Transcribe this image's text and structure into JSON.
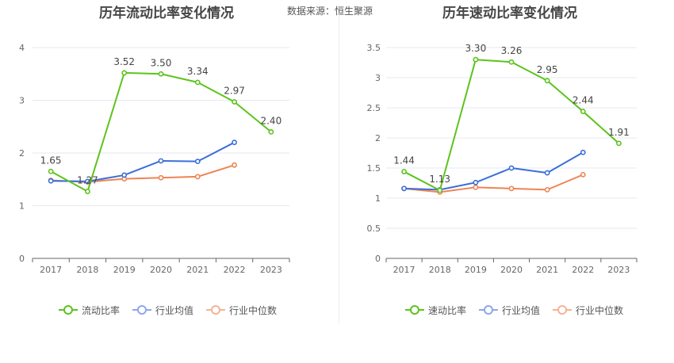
{
  "header": {
    "left_title": "历年流动比率变化情况",
    "right_title": "历年速动比率变化情况",
    "source_label": "数据来源：",
    "source_value": "恒生聚源"
  },
  "colors": {
    "company": "#5cc41c",
    "industry_avg": "#3b6fd8",
    "industry_median": "#ee8454",
    "legend_avg": "#8fa8e6",
    "legend_median": "#f3b496",
    "axis": "#666666",
    "grid": "#e6e9f0",
    "label": "#444444"
  },
  "chart_data": [
    {
      "type": "line",
      "title": "历年流动比率变化情况",
      "categories": [
        "2017",
        "2018",
        "2019",
        "2020",
        "2021",
        "2022",
        "2023"
      ],
      "ylim": [
        0,
        4
      ],
      "yticks": [
        0,
        1,
        2,
        3,
        4
      ],
      "ytick_labels": [
        "0",
        "1",
        "2",
        "3",
        "4"
      ],
      "series": [
        {
          "name": "流动比率",
          "values": [
            1.65,
            1.27,
            3.52,
            3.5,
            3.34,
            2.97,
            2.4
          ],
          "labels": [
            "1.65",
            "1.27",
            "3.52",
            "3.50",
            "3.34",
            "2.97",
            "2.40"
          ],
          "color_key": "company",
          "legend_color_key": "company"
        },
        {
          "name": "行业均值",
          "values": [
            1.47,
            1.46,
            1.58,
            1.85,
            1.84,
            2.2,
            null
          ],
          "color_key": "industry_avg",
          "legend_color_key": "legend_avg"
        },
        {
          "name": "行业中位数",
          "values": [
            1.48,
            1.45,
            1.51,
            1.53,
            1.55,
            1.77,
            null
          ],
          "color_key": "industry_median",
          "legend_color_key": "legend_median"
        }
      ]
    },
    {
      "type": "line",
      "title": "历年速动比率变化情况",
      "categories": [
        "2017",
        "2018",
        "2019",
        "2020",
        "2021",
        "2022",
        "2023"
      ],
      "ylim": [
        0,
        3.5
      ],
      "yticks": [
        0,
        0.5,
        1,
        1.5,
        2,
        2.5,
        3,
        3.5
      ],
      "ytick_labels": [
        "0",
        "0.5",
        "1",
        "1.5",
        "2",
        "2.5",
        "3",
        "3.5"
      ],
      "series": [
        {
          "name": "速动比率",
          "values": [
            1.44,
            1.13,
            3.3,
            3.26,
            2.95,
            2.44,
            1.91
          ],
          "labels": [
            "1.44",
            "1.13",
            "3.30",
            "3.26",
            "2.95",
            "2.44",
            "1.91"
          ],
          "color_key": "company",
          "legend_color_key": "company"
        },
        {
          "name": "行业均值",
          "values": [
            1.16,
            1.14,
            1.26,
            1.5,
            1.42,
            1.76,
            null
          ],
          "color_key": "industry_avg",
          "legend_color_key": "legend_avg"
        },
        {
          "name": "行业中位数",
          "values": [
            1.16,
            1.1,
            1.18,
            1.16,
            1.14,
            1.39,
            null
          ],
          "color_key": "industry_median",
          "legend_color_key": "legend_median"
        }
      ]
    }
  ]
}
